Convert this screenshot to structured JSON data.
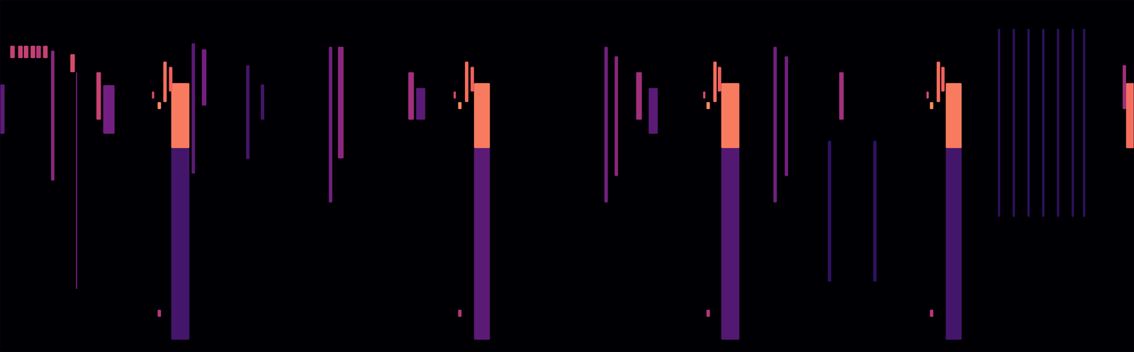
{
  "chart_data": {
    "type": "spectrogram",
    "xlim": [
      0,
      100
    ],
    "ylim": [
      0,
      100
    ],
    "clim": [
      0,
      1
    ],
    "tick_labels": false,
    "events": [
      {
        "x": [
          15.1,
          16.7
        ],
        "y": [
          57.9,
          76.4
        ],
        "intensity": 0.8
      },
      {
        "x": [
          41.8,
          43.2
        ],
        "y": [
          57.9,
          76.4
        ],
        "intensity": 0.8
      },
      {
        "x": [
          63.6,
          65.2
        ],
        "y": [
          57.9,
          76.4
        ],
        "intensity": 0.8
      },
      {
        "x": [
          83.4,
          84.8
        ],
        "y": [
          57.9,
          76.4
        ],
        "intensity": 0.8
      },
      {
        "x": [
          99.3,
          100
        ],
        "y": [
          57.9,
          76.4
        ],
        "intensity": 0.75
      },
      {
        "x": [
          15.1,
          16.7
        ],
        "y": [
          3.5,
          57.9
        ],
        "intensity": 0.25
      },
      {
        "x": [
          41.8,
          43.2
        ],
        "y": [
          3.5,
          57.9
        ],
        "intensity": 0.3
      },
      {
        "x": [
          63.6,
          65.2
        ],
        "y": [
          3.5,
          57.9
        ],
        "intensity": 0.28
      },
      {
        "x": [
          83.4,
          84.8
        ],
        "y": [
          3.5,
          57.9
        ],
        "intensity": 0.25
      },
      {
        "x": [
          13.9,
          14.2
        ],
        "y": [
          69,
          71
        ],
        "intensity": 0.85
      },
      {
        "x": [
          40.4,
          40.7
        ],
        "y": [
          69,
          71
        ],
        "intensity": 0.85
      },
      {
        "x": [
          62.3,
          62.6
        ],
        "y": [
          69,
          71
        ],
        "intensity": 0.85
      },
      {
        "x": [
          82,
          82.3
        ],
        "y": [
          69,
          71
        ],
        "intensity": 0.85
      },
      {
        "x": [
          13.4,
          13.6
        ],
        "y": [
          72,
          74
        ],
        "intensity": 0.6
      },
      {
        "x": [
          40,
          40.2
        ],
        "y": [
          72,
          74
        ],
        "intensity": 0.6
      },
      {
        "x": [
          62,
          62.2
        ],
        "y": [
          72,
          74
        ],
        "intensity": 0.6
      },
      {
        "x": [
          81.7,
          81.9
        ],
        "y": [
          72,
          74
        ],
        "intensity": 0.6
      },
      {
        "x": [
          14.4,
          14.7
        ],
        "y": [
          71,
          82.5
        ],
        "intensity": 0.75
      },
      {
        "x": [
          14.9,
          15.2
        ],
        "y": [
          74,
          81
        ],
        "intensity": 0.7
      },
      {
        "x": [
          41.0,
          41.3
        ],
        "y": [
          71,
          82.5
        ],
        "intensity": 0.75
      },
      {
        "x": [
          41.5,
          41.8
        ],
        "y": [
          74,
          81
        ],
        "intensity": 0.7
      },
      {
        "x": [
          62.9,
          63.2
        ],
        "y": [
          71,
          82.5
        ],
        "intensity": 0.75
      },
      {
        "x": [
          63.3,
          63.6
        ],
        "y": [
          74,
          81
        ],
        "intensity": 0.7
      },
      {
        "x": [
          82.6,
          82.9
        ],
        "y": [
          71,
          82.5
        ],
        "intensity": 0.75
      },
      {
        "x": [
          83.0,
          83.3
        ],
        "y": [
          74,
          81
        ],
        "intensity": 0.7
      },
      {
        "x": [
          13.9,
          14.2
        ],
        "y": [
          10,
          12
        ],
        "intensity": 0.5
      },
      {
        "x": [
          40.4,
          40.7
        ],
        "y": [
          10,
          12
        ],
        "intensity": 0.5
      },
      {
        "x": [
          62.3,
          62.6
        ],
        "y": [
          10,
          12
        ],
        "intensity": 0.5
      },
      {
        "x": [
          82,
          82.3
        ],
        "y": [
          10,
          12
        ],
        "intensity": 0.5
      },
      {
        "x": [
          0.9,
          1.3
        ],
        "y": [
          83.5,
          87
        ],
        "intensity": 0.55
      },
      {
        "x": [
          1.6,
          2.0
        ],
        "y": [
          83.5,
          87
        ],
        "intensity": 0.55
      },
      {
        "x": [
          2.1,
          2.5
        ],
        "y": [
          83.5,
          87
        ],
        "intensity": 0.55
      },
      {
        "x": [
          2.7,
          3.1
        ],
        "y": [
          83.5,
          87
        ],
        "intensity": 0.55
      },
      {
        "x": [
          3.2,
          3.6
        ],
        "y": [
          83.5,
          87
        ],
        "intensity": 0.5
      },
      {
        "x": [
          3.8,
          4.2
        ],
        "y": [
          83.5,
          87
        ],
        "intensity": 0.55
      },
      {
        "x": [
          0,
          0.4
        ],
        "y": [
          62,
          76
        ],
        "intensity": 0.3
      },
      {
        "x": [
          4.5,
          4.8
        ],
        "y": [
          48.7,
          85.6
        ],
        "intensity": 0.4
      },
      {
        "x": [
          6.2,
          6.6
        ],
        "y": [
          79.5,
          84.6
        ],
        "intensity": 0.6
      },
      {
        "x": [
          6.7,
          6.8
        ],
        "y": [
          17.9,
          79.5
        ],
        "intensity": 0.35
      },
      {
        "x": [
          8.5,
          8.9
        ],
        "y": [
          66,
          79.5
        ],
        "intensity": 0.55
      },
      {
        "x": [
          9.1,
          10.1
        ],
        "y": [
          62,
          75.8
        ],
        "intensity": 0.35
      },
      {
        "x": [
          29.0,
          29.3
        ],
        "y": [
          42.5,
          86.7
        ],
        "intensity": 0.35
      },
      {
        "x": [
          29.8,
          30.3
        ],
        "y": [
          55,
          86.7
        ],
        "intensity": 0.4
      },
      {
        "x": [
          36.0,
          36.5
        ],
        "y": [
          66,
          79.5
        ],
        "intensity": 0.45
      },
      {
        "x": [
          36.7,
          37.5
        ],
        "y": [
          66,
          75
        ],
        "intensity": 0.3
      },
      {
        "x": [
          53.3,
          53.6
        ],
        "y": [
          42.5,
          86.7
        ],
        "intensity": 0.35
      },
      {
        "x": [
          54.2,
          54.5
        ],
        "y": [
          50,
          84
        ],
        "intensity": 0.4
      },
      {
        "x": [
          56.1,
          56.6
        ],
        "y": [
          66,
          79.5
        ],
        "intensity": 0.45
      },
      {
        "x": [
          57.2,
          58.0
        ],
        "y": [
          62,
          75
        ],
        "intensity": 0.3
      },
      {
        "x": [
          68.2,
          68.5
        ],
        "y": [
          42.5,
          86.7
        ],
        "intensity": 0.35
      },
      {
        "x": [
          69.2,
          69.5
        ],
        "y": [
          50,
          84
        ],
        "intensity": 0.35
      },
      {
        "x": [
          74.0,
          74.4
        ],
        "y": [
          66,
          79.5
        ],
        "intensity": 0.45
      },
      {
        "x": [
          16.9,
          17.2
        ],
        "y": [
          50.7,
          87.7
        ],
        "intensity": 0.3
      },
      {
        "x": [
          17.8,
          18.2
        ],
        "y": [
          70,
          86
        ],
        "intensity": 0.35
      },
      {
        "x": [
          21.7,
          22.0
        ],
        "y": [
          54.8,
          81.5
        ],
        "intensity": 0.25
      },
      {
        "x": [
          23.0,
          23.3
        ],
        "y": [
          66,
          76
        ],
        "intensity": 0.25
      },
      {
        "x": [
          88.0,
          88.2
        ],
        "y": [
          38.4,
          91.8
        ],
        "intensity": 0.2
      },
      {
        "x": [
          89.3,
          89.5
        ],
        "y": [
          38.4,
          91.8
        ],
        "intensity": 0.2
      },
      {
        "x": [
          90.6,
          90.8
        ],
        "y": [
          38.4,
          91.8
        ],
        "intensity": 0.2
      },
      {
        "x": [
          91.9,
          92.1
        ],
        "y": [
          38.4,
          91.8
        ],
        "intensity": 0.2
      },
      {
        "x": [
          93.2,
          93.4
        ],
        "y": [
          38.4,
          91.8
        ],
        "intensity": 0.2
      },
      {
        "x": [
          94.5,
          94.7
        ],
        "y": [
          38.4,
          91.8
        ],
        "intensity": 0.2
      },
      {
        "x": [
          95.5,
          95.7
        ],
        "y": [
          38.4,
          91.8
        ],
        "intensity": 0.2
      },
      {
        "x": [
          99.0,
          99.3
        ],
        "y": [
          69,
          81.5
        ],
        "intensity": 0.45
      },
      {
        "x": [
          73.0,
          73.3
        ],
        "y": [
          20,
          60
        ],
        "intensity": 0.2
      },
      {
        "x": [
          77.0,
          77.3
        ],
        "y": [
          20,
          60
        ],
        "intensity": 0.2
      }
    ]
  }
}
